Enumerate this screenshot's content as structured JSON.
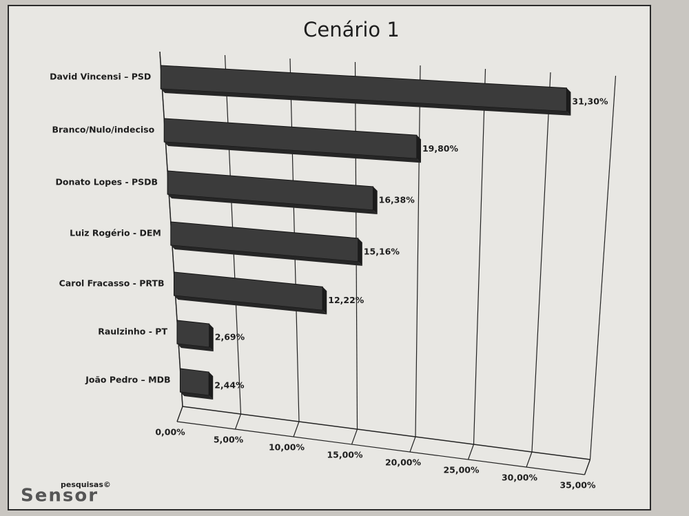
{
  "chart_data": {
    "type": "bar",
    "orientation": "horizontal",
    "title": "Cenário 1",
    "categories": [
      "David Vincensi – PSD",
      "Branco/Nulo/indeciso",
      "Donato Lopes - PSDB",
      "Luiz Rogério - DEM",
      "Carol Fracasso - PRTB",
      "Raulzinho - PT",
      "João Pedro – MDB"
    ],
    "values": [
      31.3,
      19.8,
      16.38,
      15.16,
      12.22,
      2.69,
      2.44
    ],
    "value_labels": [
      "31,30%",
      "19,80%",
      "16,38%",
      "15,16%",
      "12,22%",
      "2,69%",
      "2,44%"
    ],
    "color": "#3b3b3b",
    "xlim": [
      0,
      35
    ],
    "xticks": [
      {
        "value": 0,
        "label": "0,00%"
      },
      {
        "value": 5,
        "label": "5,00%"
      },
      {
        "value": 10,
        "label": "10,00%"
      },
      {
        "value": 15,
        "label": "15,00%"
      },
      {
        "value": 20,
        "label": "20,00%"
      },
      {
        "value": 25,
        "label": "25,00%"
      },
      {
        "value": 30,
        "label": "30,00%"
      },
      {
        "value": 35,
        "label": "35,00%"
      }
    ],
    "grid": true,
    "annotations": [
      "pesquisas©",
      "Sensor"
    ]
  }
}
